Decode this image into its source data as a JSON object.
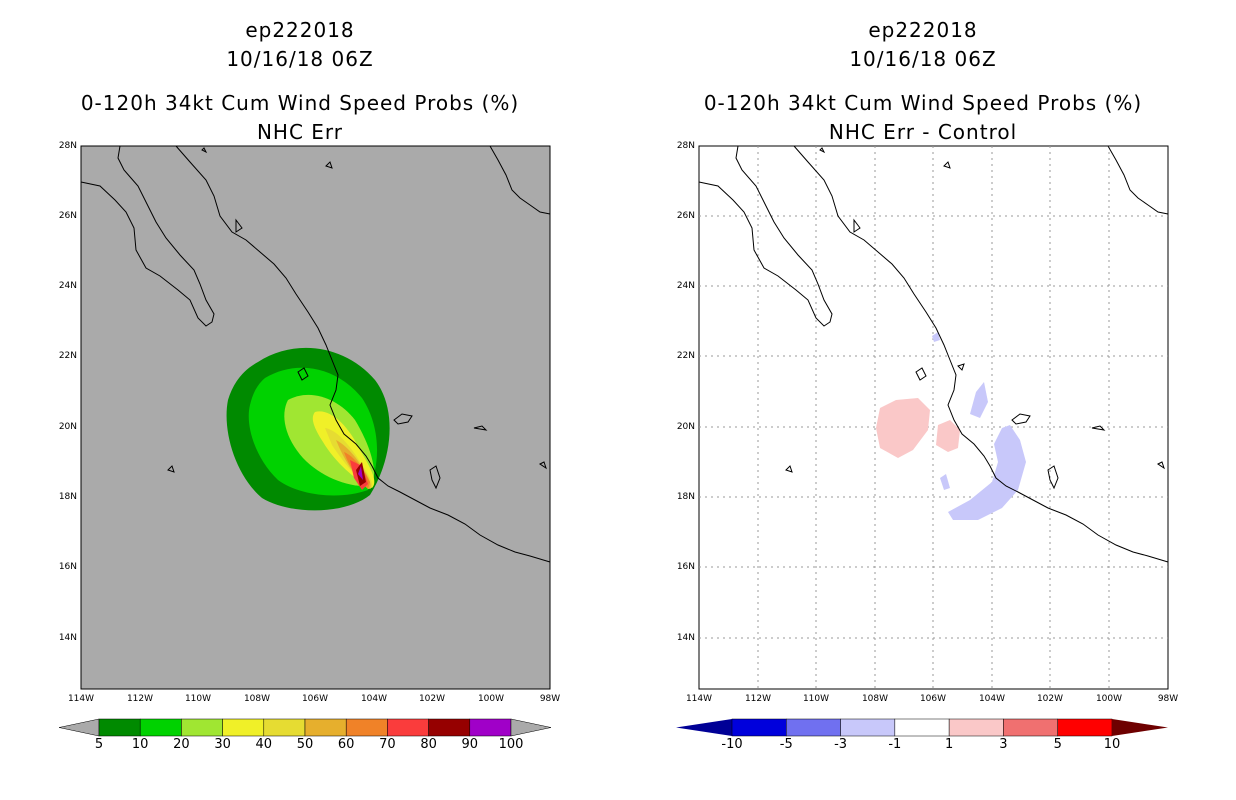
{
  "left_panel": {
    "storm_id": "ep222018",
    "datetime": "10/16/18 06Z",
    "product": "0-120h 34kt Cum Wind Speed Probs (%)",
    "subtitle": "NHC Err",
    "colorbar": {
      "labels": [
        "5",
        "10",
        "20",
        "30",
        "40",
        "50",
        "60",
        "70",
        "80",
        "90",
        "100"
      ],
      "colors": [
        "#008a00",
        "#00d200",
        "#a0e632",
        "#f0f028",
        "#e6dc32",
        "#e6af2d",
        "#f08228",
        "#fa3c3c",
        "#960000",
        "#a000c8"
      ],
      "below_color": "#aaaaaa",
      "above_color": "#aaaaaa"
    },
    "background_color": "#aaaaaa"
  },
  "right_panel": {
    "storm_id": "ep222018",
    "datetime": "10/16/18 06Z",
    "product": "0-120h 34kt Cum Wind Speed Probs (%)",
    "subtitle": "NHC Err - Control",
    "colorbar": {
      "labels": [
        "-10",
        "-5",
        "-3",
        "-1",
        "1",
        "3",
        "5",
        "10"
      ],
      "colors": [
        "#0000dc",
        "#7070f0",
        "#c8c8fa",
        "#ffffff",
        "#fac8c8",
        "#f07070",
        "#ff0000"
      ],
      "below_color": "#000096",
      "above_color": "#6e0000"
    },
    "background_color": "#ffffff"
  },
  "axes": {
    "lat_labels": [
      "28N",
      "26N",
      "24N",
      "22N",
      "20N",
      "18N",
      "16N",
      "14N"
    ],
    "lon_labels": [
      "114W",
      "112W",
      "110W",
      "108W",
      "106W",
      "104W",
      "102W",
      "100W",
      "98W"
    ]
  }
}
